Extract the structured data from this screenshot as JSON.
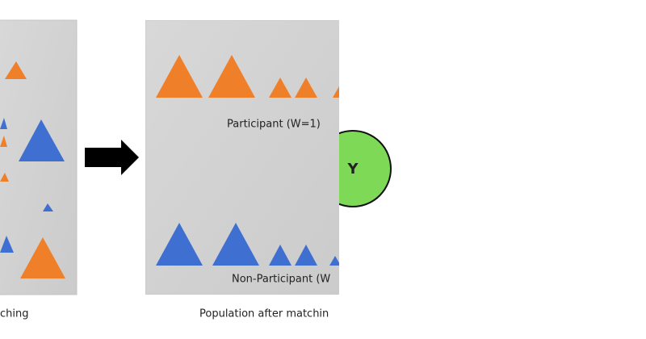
{
  "left_panel": {
    "caption": "ching"
  },
  "right_panel": {
    "top_label": "Participant (W=1)",
    "bottom_label": "Non-Participant (W",
    "caption": "Population after matchin"
  },
  "node": {
    "label": "Y"
  }
}
